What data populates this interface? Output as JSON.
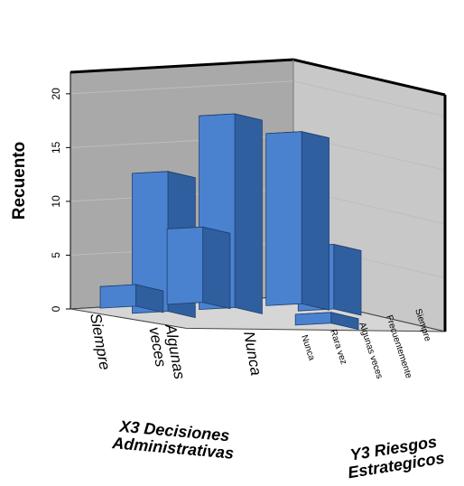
{
  "chart_data": {
    "type": "bar",
    "variant": "3d-histogram",
    "ylabel": "Recuento",
    "ylim": [
      0,
      22
    ],
    "yticks": [
      0,
      5,
      10,
      15,
      20
    ],
    "x_axis": {
      "label_line1": "X3 Decisiones",
      "label_line2": "Administrativas",
      "categories": [
        "Siempre",
        "Algunas veces",
        "Nunca"
      ],
      "category_lines": [
        [
          "Siempre"
        ],
        [
          "Algunas",
          "veces"
        ],
        [
          "Nunca"
        ]
      ]
    },
    "depth_axis": {
      "label_line1": "Y3 Riesgos",
      "label_line2": "Estrategicos",
      "categories": [
        "Nunca",
        "Rara vez",
        "Algunas veces",
        "Frecuentemente",
        "Siempre"
      ]
    },
    "bars": [
      {
        "x": "Siempre",
        "depth": "Siempre",
        "value": 2
      },
      {
        "x": "Siempre",
        "depth": "Frecuentemente",
        "value": 13
      },
      {
        "x": "Algunas veces",
        "depth": "Siempre",
        "value": 7
      },
      {
        "x": "Algunas veces",
        "depth": "Frecuentemente",
        "value": 18
      },
      {
        "x": "Algunas veces",
        "depth": "Nunca",
        "value": 1
      },
      {
        "x": "Nunca",
        "depth": "Frecuentemente",
        "value": 16
      },
      {
        "x": "Nunca",
        "depth": "Algunas veces",
        "value": 6
      }
    ],
    "grid": true,
    "colors": {
      "bar_front": "#4a82d0",
      "bar_side": "#2f5f9e",
      "bar_top": "#6b9be0",
      "bar_edge": "#1f3f70",
      "back_wall": "#a9a9a9",
      "side_wall": "#c8c8c8",
      "floor": "#d6d6d6",
      "grid": "#bdbdbd"
    }
  }
}
